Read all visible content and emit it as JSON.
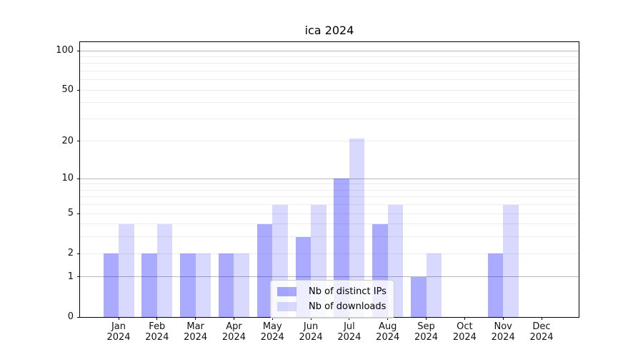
{
  "chart_data": {
    "type": "bar",
    "title": "ica 2024",
    "categories": [
      "Jan",
      "Feb",
      "Mar",
      "Apr",
      "May",
      "Jun",
      "Jul",
      "Aug",
      "Sep",
      "Oct",
      "Nov",
      "Dec"
    ],
    "category_year": "2024",
    "series": [
      {
        "name": "Nb of distinct IPs",
        "color": "#0000ff55",
        "values": [
          2,
          2,
          2,
          2,
          4,
          3,
          10,
          4,
          1,
          0,
          2,
          0
        ]
      },
      {
        "name": "Nb of downloads",
        "color": "#0000ff26",
        "values": [
          4,
          4,
          2,
          2,
          6,
          6,
          21,
          6,
          2,
          0,
          6,
          0
        ]
      }
    ],
    "yscale": "log1p",
    "ylim": [
      0,
      116
    ],
    "yticks": [
      0,
      1,
      2,
      5,
      10,
      20,
      50,
      100
    ],
    "grid_major_values": [
      1,
      10,
      100
    ],
    "grid_minor_values": [
      2,
      3,
      4,
      5,
      6,
      7,
      8,
      9,
      20,
      30,
      40,
      50,
      60,
      70,
      80,
      90
    ],
    "legend": {
      "location": "lower center"
    },
    "colors": {
      "frame": "#000000",
      "grid_major": "#b8b8b8",
      "grid_minor": "#ececec",
      "text": "#000000"
    }
  }
}
